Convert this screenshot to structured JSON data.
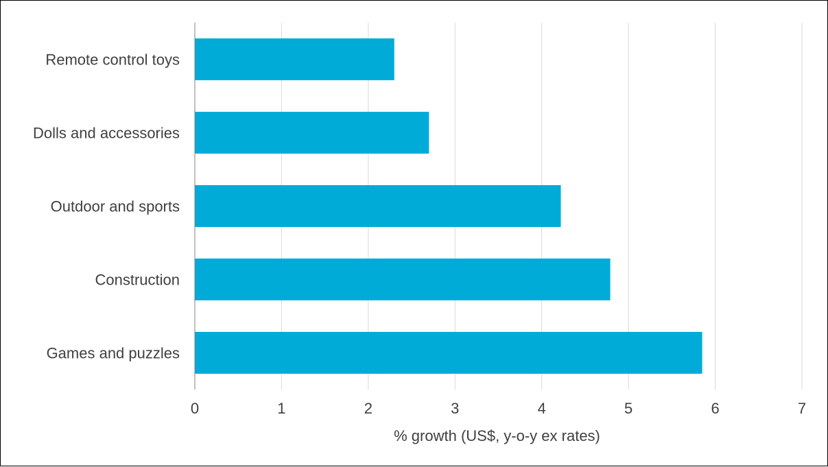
{
  "chart_data": {
    "type": "bar",
    "orientation": "horizontal",
    "categories": [
      "Remote control toys",
      "Dolls and accessories",
      "Outdoor and sports",
      "Construction",
      "Games and puzzles"
    ],
    "values": [
      2.3,
      2.7,
      4.22,
      4.79,
      5.85
    ],
    "xlabel": "% growth (US$, y-o-y ex rates)",
    "ylabel": "",
    "xlim": [
      0,
      7
    ],
    "xticks": [
      0,
      1,
      2,
      3,
      4,
      5,
      6,
      7
    ],
    "grid": "vertical",
    "legend": "none",
    "colors": {
      "bar": "#00ACD7",
      "grid": "#D9D9D9",
      "text": "#404040",
      "axis": "#808080"
    }
  }
}
